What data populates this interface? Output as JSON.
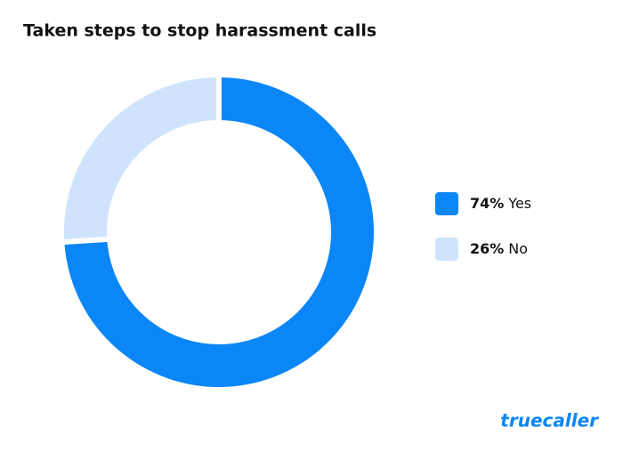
{
  "chart_data": {
    "type": "donut",
    "title": "Taken steps to stop harassment calls",
    "categories": [
      "Yes",
      "No"
    ],
    "values": [
      74,
      26
    ],
    "value_labels": [
      "74%",
      "26%"
    ],
    "colors": [
      "#0a86f7",
      "#cfe4fc"
    ],
    "legend": "right"
  },
  "logo": "truecaller"
}
